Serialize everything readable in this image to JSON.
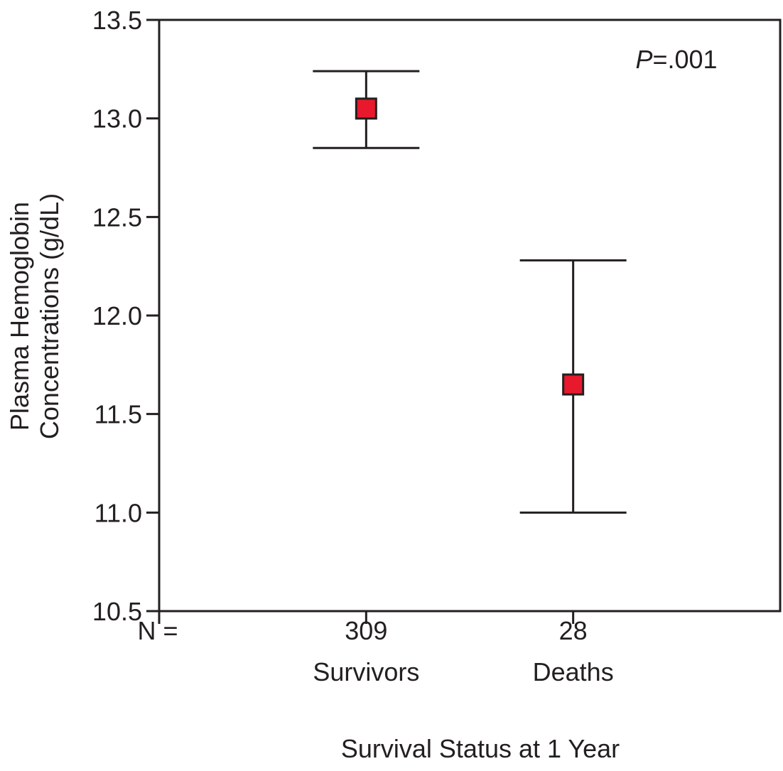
{
  "chart_data": {
    "type": "scatter",
    "subtype": "mean-with-error-bars",
    "title": "",
    "xlabel": "Survival Status at 1 Year",
    "ylabel_lines": [
      "Plasma Hemoglobin",
      "Concentrations (g/dL)"
    ],
    "ylim": [
      10.5,
      13.5
    ],
    "yticks": [
      "10.5",
      "11.0",
      "11.5",
      "12.0",
      "12.5",
      "13.0",
      "13.5"
    ],
    "n_label": "N =",
    "categories": [
      {
        "name": "Survivors",
        "n": "309",
        "mean": 13.05,
        "upper": 13.24,
        "lower": 12.85
      },
      {
        "name": "Deaths",
        "n": "28",
        "mean": 11.65,
        "upper": 12.28,
        "lower": 11.0
      }
    ],
    "annotation": {
      "p_italic": "P",
      "p_rest": "=.001"
    },
    "grid": false,
    "marker_color": "#e8192c",
    "line_color": "#231f20"
  }
}
